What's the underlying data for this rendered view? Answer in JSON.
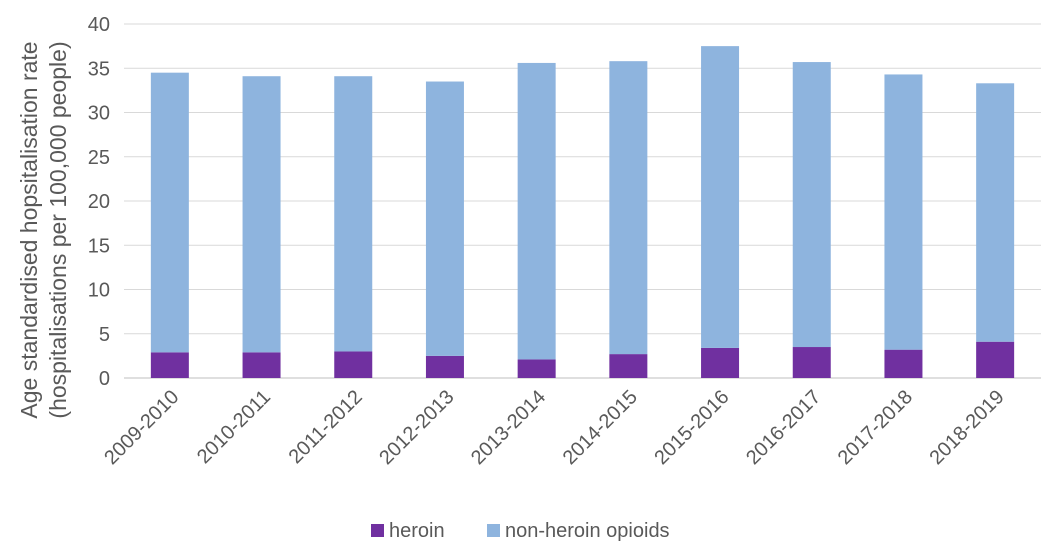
{
  "chart_data": {
    "type": "bar",
    "stacked": true,
    "title": "",
    "xlabel": "",
    "ylabel_lines": [
      "Age standardised hopsitalisation rate",
      "(hospitalisations per 100,000 people)"
    ],
    "categories": [
      "2009-2010",
      "2010-2011",
      "2011-2012",
      "2012-2013",
      "2013-2014",
      "2014-2015",
      "2015-2016",
      "2016-2017",
      "2017-2018",
      "2018-2019"
    ],
    "series": [
      {
        "name": "heroin",
        "color": "#7030A0",
        "values": [
          2.9,
          2.9,
          3.0,
          2.5,
          2.1,
          2.7,
          3.4,
          3.5,
          3.2,
          4.1
        ]
      },
      {
        "name": "non-heroin opioids",
        "color": "#8EB4DE",
        "values": [
          31.6,
          31.2,
          31.1,
          31.0,
          33.5,
          33.1,
          34.1,
          32.2,
          31.1,
          29.2
        ]
      }
    ],
    "ylim": [
      0,
      40
    ],
    "yticks": [
      "0",
      "5",
      "10",
      "15",
      "20",
      "25",
      "30",
      "35",
      "40"
    ],
    "grid": true,
    "legend_position": "bottom"
  }
}
